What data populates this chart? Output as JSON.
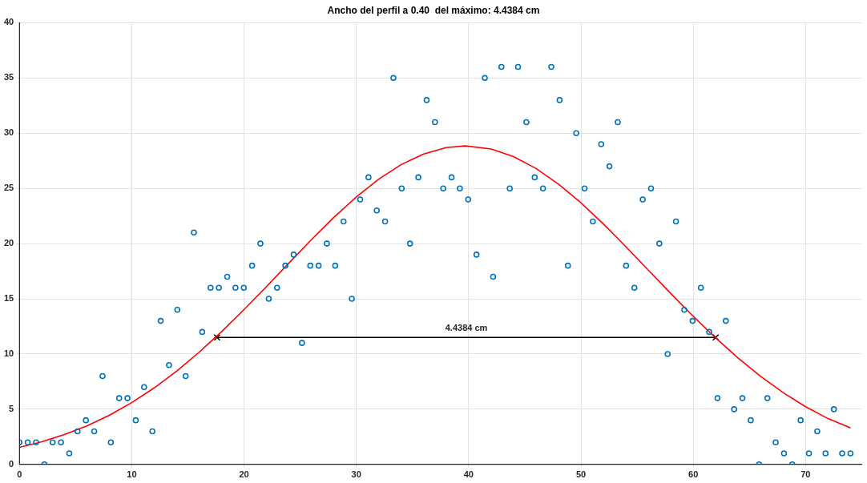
{
  "chart_data": {
    "type": "scatter",
    "title": "Ancho del perfil a 0.40  del máximo: 4.4384 cm",
    "xlim": [
      0,
      75
    ],
    "xticks": [
      0,
      10,
      20,
      30,
      40,
      50,
      60,
      70
    ],
    "ylim": [
      0,
      40
    ],
    "yticks": [
      0,
      5,
      10,
      15,
      20,
      25,
      30,
      35,
      40
    ],
    "grid": true,
    "legend": false,
    "series": [
      {
        "type": "scatter",
        "marker": "circle",
        "color": "#0072bd",
        "x": [
          0,
          0.74,
          1.48,
          2.22,
          2.96,
          3.7,
          4.44,
          5.18,
          5.92,
          6.66,
          7.4,
          8.14,
          8.88,
          9.62,
          10.36,
          11.1,
          11.84,
          12.58,
          13.32,
          14.06,
          14.8,
          15.54,
          16.28,
          17.02,
          17.76,
          18.5,
          19.24,
          19.98,
          20.72,
          21.46,
          22.2,
          22.94,
          23.68,
          24.42,
          25.16,
          25.9,
          26.64,
          27.38,
          28.12,
          28.86,
          29.6,
          30.34,
          31.08,
          31.82,
          32.56,
          33.3,
          34.04,
          34.78,
          35.52,
          36.26,
          37,
          37.74,
          38.48,
          39.22,
          39.96,
          40.7,
          41.44,
          42.18,
          42.92,
          43.66,
          44.4,
          45.14,
          45.88,
          46.62,
          47.36,
          48.1,
          48.84,
          49.58,
          50.32,
          51.06,
          51.8,
          52.54,
          53.28,
          54.02,
          54.76,
          55.5,
          56.24,
          56.98,
          57.72,
          58.46,
          59.2,
          59.94,
          60.68,
          61.42,
          62.16,
          62.9,
          63.64,
          64.38,
          65.12,
          65.86,
          66.6,
          67.34,
          68.08,
          68.82,
          69.56,
          70.3,
          71.04,
          71.78,
          72.52,
          73.26,
          74
        ],
        "values": [
          2,
          2,
          2,
          0,
          2,
          2,
          1,
          3,
          4,
          3,
          8,
          2,
          6,
          6,
          4,
          7,
          3,
          13,
          9,
          14,
          8,
          21,
          12,
          16,
          16,
          17,
          16,
          16,
          18,
          20,
          15,
          16,
          18,
          19,
          11,
          18,
          18,
          20,
          18,
          22,
          15,
          24,
          26,
          23,
          22,
          35,
          25,
          20,
          26,
          33,
          31,
          25,
          26,
          25,
          24,
          19,
          35,
          17,
          36,
          25,
          36,
          31,
          26,
          25,
          36,
          33,
          18,
          30,
          25,
          22,
          29,
          27,
          31,
          18,
          16,
          24,
          25,
          20,
          10,
          22,
          14,
          13,
          16,
          12,
          6,
          13,
          5,
          6,
          4,
          0,
          6,
          2,
          1,
          0,
          4,
          1,
          3,
          1,
          5,
          1,
          1
        ]
      },
      {
        "type": "line",
        "marker": "none",
        "color": "#ff0000",
        "x": [
          0,
          2,
          4,
          6,
          8,
          10,
          12,
          14,
          16,
          18,
          20,
          22,
          24,
          26,
          28,
          30,
          32,
          34,
          36,
          38,
          39.7,
          42,
          44,
          46,
          48,
          50,
          52,
          54,
          56,
          58,
          60,
          62,
          64,
          66,
          68,
          70,
          72,
          74
        ],
        "values": [
          1.54,
          2.05,
          2.7,
          3.49,
          4.45,
          5.6,
          6.93,
          8.45,
          10.16,
          12.02,
          14.02,
          16.11,
          18.24,
          20.35,
          22.37,
          24.22,
          25.84,
          27.16,
          28.12,
          28.69,
          28.85,
          28.57,
          27.88,
          26.8,
          25.38,
          23.69,
          21.78,
          19.72,
          17.6,
          15.48,
          13.41,
          11.45,
          9.62,
          7.97,
          6.51,
          5.23,
          4.15,
          3.3
        ]
      },
      {
        "type": "line",
        "marker": "cross",
        "color": "#000000",
        "x": [
          17.6,
          62
        ],
        "values": [
          11.5,
          11.5
        ]
      }
    ],
    "annotations": [
      {
        "text": "4.4384 cm",
        "x": 39.8,
        "y": 11.5
      }
    ]
  }
}
